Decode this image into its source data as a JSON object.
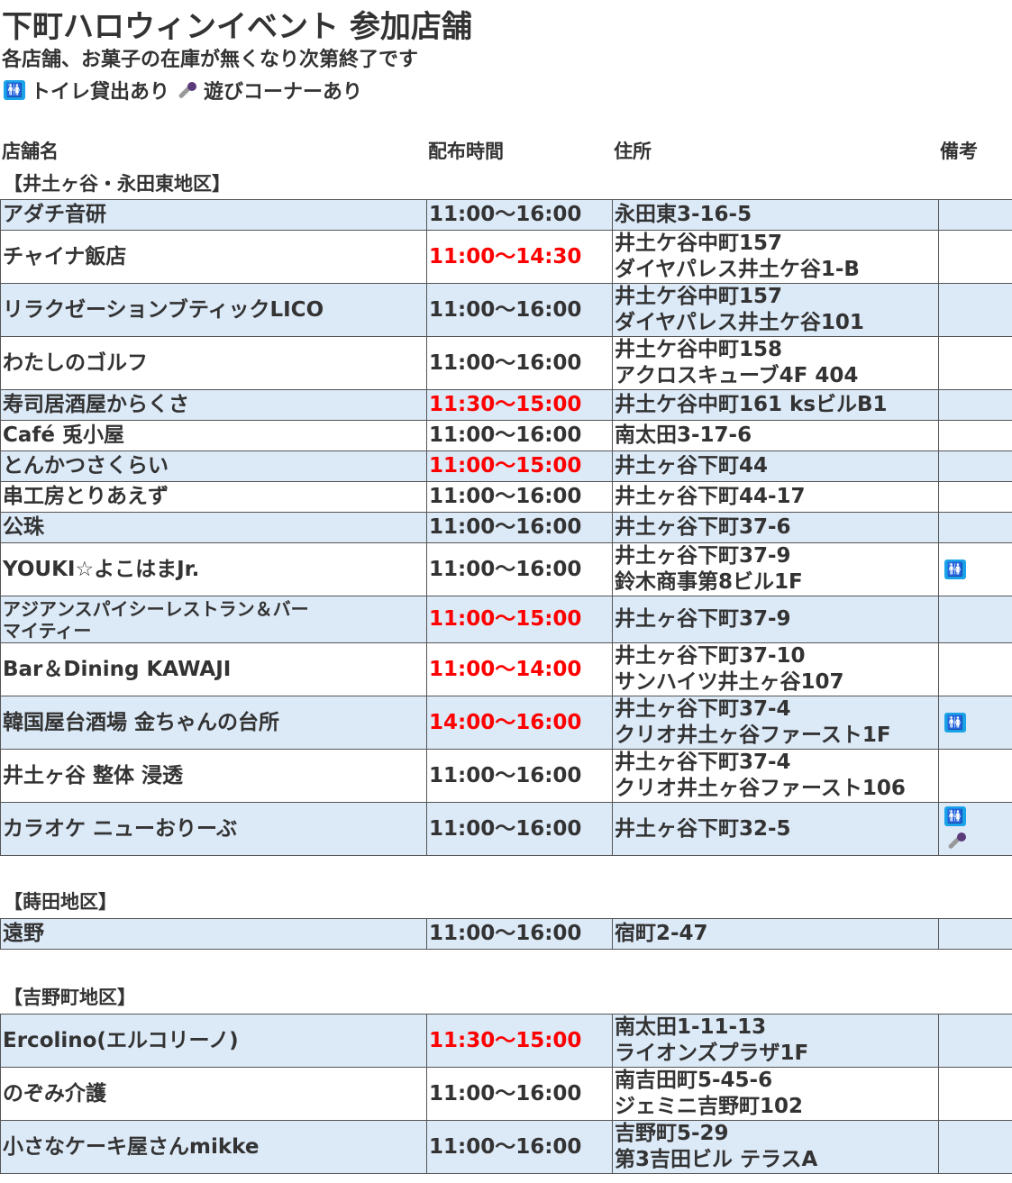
{
  "title": "下町ハロウィンイベント 参加店舗",
  "subtitle": "各店舗、お菓子の在庫が無くなり次第終了です",
  "legend": {
    "toilet_label": "トイレ貸出あり",
    "play_label": "遊びコーナーあり",
    "toilet_icon": "restroom-icon",
    "play_icon": "microphone-icon"
  },
  "headers": {
    "name": "店舗名",
    "time": "配布時間",
    "address": "住所",
    "notes": "備考"
  },
  "colors": {
    "row_alt": "#dce9f7",
    "time_highlight": "#ff0000",
    "toilet_icon": "#1aa3e8"
  },
  "sections": [
    {
      "title": "【井土ヶ谷・永田東地区】",
      "rows": [
        {
          "name": "アダチ音研",
          "time": "11:00〜16:00",
          "address": [
            "永田東3-16-5"
          ],
          "notes": []
        },
        {
          "name": "チャイナ飯店",
          "time": "11:00〜14:30",
          "red": true,
          "address": [
            "井土ケ谷中町157",
            "ダイヤパレス井土ケ谷1-B"
          ],
          "notes": []
        },
        {
          "name": "リラクゼーションブティックLICO",
          "time": "11:00〜16:00",
          "address": [
            "井土ケ谷中町157",
            "ダイヤパレス井土ケ谷101"
          ],
          "notes": []
        },
        {
          "name": "わたしのゴルフ",
          "time": "11:00〜16:00",
          "address": [
            "井土ケ谷中町158",
            "アクロスキューブ4F 404"
          ],
          "notes": []
        },
        {
          "name": "寿司居酒屋からくさ",
          "time": "11:30〜15:00",
          "red": true,
          "address": [
            "井土ケ谷中町161 ksビルB1"
          ],
          "notes": []
        },
        {
          "name": "Café 兎小屋",
          "time": "11:00〜16:00",
          "address": [
            "南太田3-17-6"
          ],
          "notes": []
        },
        {
          "name": "とんかつさくらい",
          "time": "11:00〜15:00",
          "red": true,
          "address": [
            "井土ヶ谷下町44"
          ],
          "notes": []
        },
        {
          "name": "串工房とりあえず",
          "time": "11:00〜16:00",
          "address": [
            "井土ヶ谷下町44-17"
          ],
          "notes": []
        },
        {
          "name": "公珠",
          "time": "11:00〜16:00",
          "address": [
            "井土ヶ谷下町37-6"
          ],
          "notes": []
        },
        {
          "name": "YOUKI☆よこはまJr.",
          "time": "11:00〜16:00",
          "address": [
            "井土ヶ谷下町37-9",
            "鈴木商事第8ビル1F"
          ],
          "notes": [
            "toilet"
          ]
        },
        {
          "name": "アジアンスパイシーレストラン＆バー\nマイティー",
          "small": true,
          "time": "11:00〜15:00",
          "red": true,
          "address": [
            "井土ヶ谷下町37-9"
          ],
          "notes": []
        },
        {
          "name": "Bar＆Dining KAWAJI",
          "time": "11:00〜14:00",
          "red": true,
          "address": [
            "井土ヶ谷下町37-10",
            "サンハイツ井土ヶ谷107"
          ],
          "notes": []
        },
        {
          "name": "韓国屋台酒場 金ちゃんの台所",
          "time": "14:00〜16:00",
          "red": true,
          "address": [
            "井土ヶ谷下町37-4",
            "クリオ井土ヶ谷ファースト1F"
          ],
          "notes": [
            "toilet"
          ]
        },
        {
          "name": "井土ヶ谷 整体 浸透",
          "time": "11:00〜16:00",
          "address": [
            "井土ヶ谷下町37-4",
            "クリオ井土ヶ谷ファースト106"
          ],
          "notes": []
        },
        {
          "name": "カラオケ ニューおりーぶ",
          "time": "11:00〜16:00",
          "address": [
            "井土ヶ谷下町32-5"
          ],
          "notes": [
            "toilet",
            "mic"
          ]
        }
      ]
    },
    {
      "title": "【蒔田地区】",
      "rows": [
        {
          "name": "遠野",
          "time": "11:00〜16:00",
          "address": [
            "宿町2-47"
          ],
          "notes": []
        }
      ]
    },
    {
      "title": "【吉野町地区】",
      "rows": [
        {
          "name": "Ercolino(エルコリーノ)",
          "time": "11:30〜15:00",
          "red": true,
          "address": [
            "南太田1-11-13",
            "ライオンズプラザ1F"
          ],
          "notes": []
        },
        {
          "name": "のぞみ介護",
          "time": "11:00〜16:00",
          "address": [
            "南吉田町5-45-6",
            "ジェミニ吉野町102"
          ],
          "notes": []
        },
        {
          "name": "小さなケーキ屋さんmikke",
          "time": "11:00〜16:00",
          "address": [
            "吉野町5-29",
            "第3吉田ビル テラスA"
          ],
          "notes": []
        }
      ]
    }
  ]
}
